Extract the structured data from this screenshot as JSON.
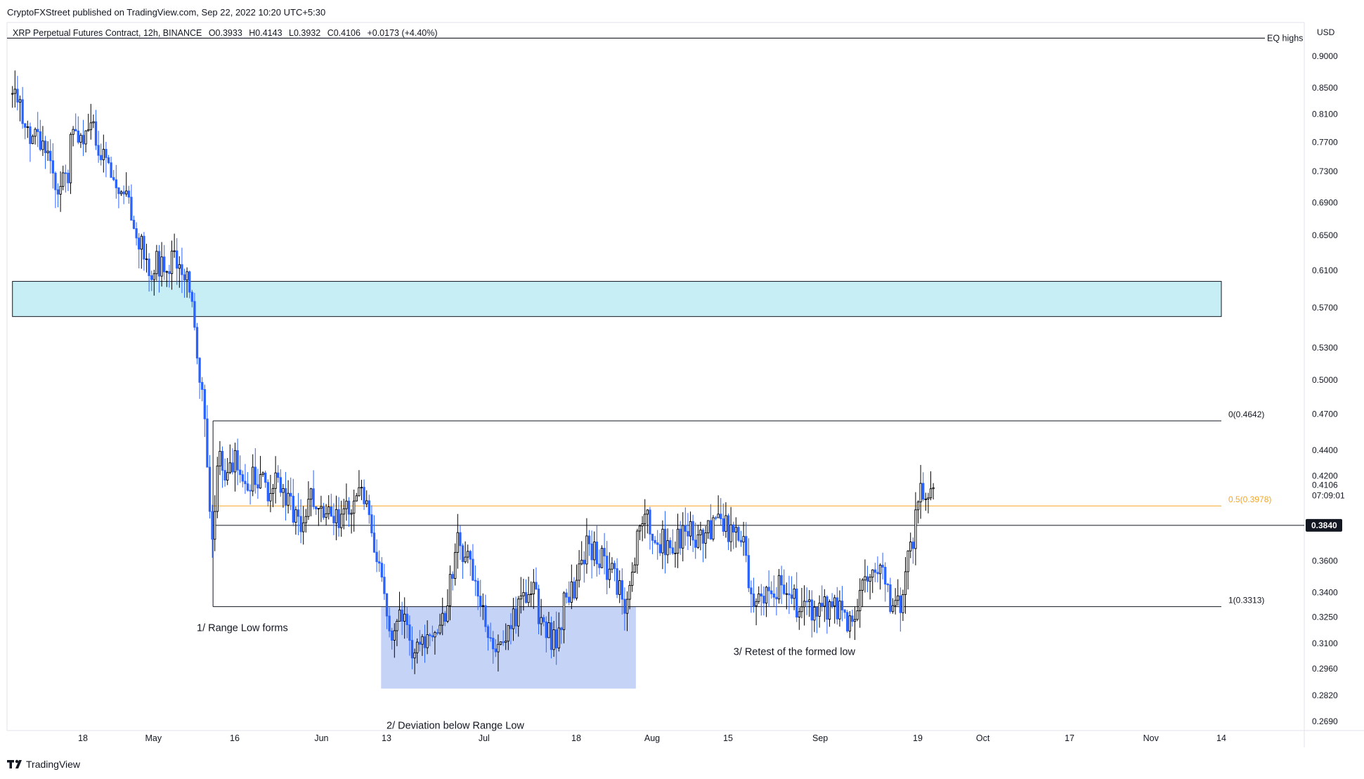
{
  "header": {
    "publisher": "CryptoFXStreet published on TradingView.com, Sep 22, 2022 10:20 UTC+5:30",
    "symbol_line": "XRP Perpetual Futures Contract, 12h, BINANCE",
    "ohlc": {
      "o": "O0.3933",
      "h": "H0.4143",
      "l": "L0.3932",
      "c": "C0.4106",
      "chg": "+0.0173 (+4.40%)"
    }
  },
  "footer": {
    "brand": "TradingView",
    "logo_icon": "tradingview-logo-icon"
  },
  "colors": {
    "up": "#000000",
    "down": "#2962ff",
    "zone_supply": "#c8eef5",
    "zone_deviation": "#c5d3f7",
    "fib_half": "#f5a623",
    "price_tag_bg": "#131722"
  },
  "chart_data": {
    "type": "candlestick",
    "scale": "log",
    "currency": "USD",
    "price_ticks": [
      0.9,
      0.85,
      0.81,
      0.77,
      0.73,
      0.69,
      0.65,
      0.61,
      0.57,
      0.53,
      0.5,
      0.47,
      0.44,
      0.42,
      0.36,
      0.34,
      0.325,
      0.31,
      0.296,
      0.282,
      0.269
    ],
    "price_tick_labels": [
      "0.9000",
      "0.8500",
      "0.8100",
      "0.7700",
      "0.7300",
      "0.6900",
      "0.6500",
      "0.6100",
      "0.5700",
      "0.5300",
      "0.5000",
      "0.4700",
      "0.4400",
      "0.4200",
      "0.3600",
      "0.3400",
      "0.3250",
      "0.3100",
      "0.2960",
      "0.2820",
      "0.2690"
    ],
    "last_price_label": "0.4106",
    "countdown": "07:09:01",
    "current_level_label": "0.3840",
    "time_ticks": [
      {
        "label": "18",
        "date": "2022-04-18"
      },
      {
        "label": "May",
        "date": "2022-05-01"
      },
      {
        "label": "16",
        "date": "2022-05-16"
      },
      {
        "label": "Jun",
        "date": "2022-06-01"
      },
      {
        "label": "13",
        "date": "2022-06-13"
      },
      {
        "label": "Jul",
        "date": "2022-07-01"
      },
      {
        "label": "18",
        "date": "2022-07-18"
      },
      {
        "label": "Aug",
        "date": "2022-08-01"
      },
      {
        "label": "15",
        "date": "2022-08-15"
      },
      {
        "label": "Sep",
        "date": "2022-09-01"
      },
      {
        "label": "19",
        "date": "2022-09-19"
      },
      {
        "label": "Oct",
        "date": "2022-10-01"
      },
      {
        "label": "17",
        "date": "2022-10-17"
      },
      {
        "label": "Nov",
        "date": "2022-11-01"
      },
      {
        "label": "14",
        "date": "2022-11-14"
      }
    ],
    "levels": [
      {
        "label": "EQ highs",
        "price": 0.93
      },
      {
        "label": "0(0.4642)",
        "price": 0.4642
      },
      {
        "label": "0.5(0.3978)",
        "price": 0.3978
      },
      {
        "label": "",
        "price": 0.384
      },
      {
        "label": "1(0.3313)",
        "price": 0.3313
      }
    ],
    "zones": [
      {
        "name": "supply",
        "start": "2022-04-05",
        "end": "2022-11-14",
        "top": 0.598,
        "bottom": 0.561
      },
      {
        "name": "deviation",
        "start": "2022-06-12",
        "end": "2022-07-29",
        "top": 0.3313,
        "bottom": 0.2855
      }
    ],
    "annotations": [
      {
        "text": "1/ Range Low forms",
        "date": "2022-05-09",
        "price": 0.317
      },
      {
        "text": "2/ Deviation below Range Low",
        "date": "2022-06-13",
        "price": 0.2655
      },
      {
        "text": "3/ Retest of the formed low",
        "date": "2022-08-16",
        "price": 0.3035
      }
    ],
    "path": [
      [
        "2022-04-05",
        0.84
      ],
      [
        "2022-04-08",
        0.79
      ],
      [
        "2022-04-11",
        0.76
      ],
      [
        "2022-04-13",
        0.72
      ],
      [
        "2022-04-15",
        0.71
      ],
      [
        "2022-04-16",
        0.79
      ],
      [
        "2022-04-18",
        0.78
      ],
      [
        "2022-04-20",
        0.78
      ],
      [
        "2022-04-22",
        0.75
      ],
      [
        "2022-04-24",
        0.72
      ],
      [
        "2022-04-26",
        0.69
      ],
      [
        "2022-04-28",
        0.65
      ],
      [
        "2022-04-29",
        0.63
      ],
      [
        "2022-04-30",
        0.6
      ],
      [
        "2022-05-01",
        0.62
      ],
      [
        "2022-05-03",
        0.61
      ],
      [
        "2022-05-05",
        0.63
      ],
      [
        "2022-05-06",
        0.62
      ],
      [
        "2022-05-07",
        0.6
      ],
      [
        "2022-05-08",
        0.58
      ],
      [
        "2022-05-09",
        0.52
      ],
      [
        "2022-05-10",
        0.48
      ],
      [
        "2022-05-11",
        0.43
      ],
      [
        "2022-05-12",
        0.36
      ],
      [
        "2022-05-13",
        0.44
      ],
      [
        "2022-05-14",
        0.42
      ],
      [
        "2022-05-16",
        0.43
      ],
      [
        "2022-05-18",
        0.41
      ],
      [
        "2022-05-20",
        0.42
      ],
      [
        "2022-05-22",
        0.41
      ],
      [
        "2022-05-24",
        0.42
      ],
      [
        "2022-05-26",
        0.4
      ],
      [
        "2022-05-28",
        0.385
      ],
      [
        "2022-05-30",
        0.41
      ],
      [
        "2022-06-01",
        0.4
      ],
      [
        "2022-06-03",
        0.395
      ],
      [
        "2022-06-05",
        0.39
      ],
      [
        "2022-06-07",
        0.405
      ],
      [
        "2022-06-09",
        0.4
      ],
      [
        "2022-06-10",
        0.385
      ],
      [
        "2022-06-11",
        0.37
      ],
      [
        "2022-06-12",
        0.35
      ],
      [
        "2022-06-13",
        0.32
      ],
      [
        "2022-06-14",
        0.31
      ],
      [
        "2022-06-16",
        0.33
      ],
      [
        "2022-06-18",
        0.3
      ],
      [
        "2022-06-20",
        0.315
      ],
      [
        "2022-06-22",
        0.32
      ],
      [
        "2022-06-24",
        0.33
      ],
      [
        "2022-06-26",
        0.375
      ],
      [
        "2022-06-28",
        0.36
      ],
      [
        "2022-06-30",
        0.33
      ],
      [
        "2022-07-02",
        0.315
      ],
      [
        "2022-07-04",
        0.31
      ],
      [
        "2022-07-06",
        0.32
      ],
      [
        "2022-07-08",
        0.335
      ],
      [
        "2022-07-10",
        0.34
      ],
      [
        "2022-07-12",
        0.32
      ],
      [
        "2022-07-14",
        0.31
      ],
      [
        "2022-07-16",
        0.335
      ],
      [
        "2022-07-18",
        0.345
      ],
      [
        "2022-07-20",
        0.37
      ],
      [
        "2022-07-22",
        0.365
      ],
      [
        "2022-07-24",
        0.355
      ],
      [
        "2022-07-26",
        0.34
      ],
      [
        "2022-07-27",
        0.33
      ],
      [
        "2022-07-29",
        0.37
      ],
      [
        "2022-07-31",
        0.39
      ],
      [
        "2022-08-02",
        0.375
      ],
      [
        "2022-08-04",
        0.37
      ],
      [
        "2022-08-06",
        0.375
      ],
      [
        "2022-08-08",
        0.38
      ],
      [
        "2022-08-10",
        0.375
      ],
      [
        "2022-08-12",
        0.38
      ],
      [
        "2022-08-14",
        0.385
      ],
      [
        "2022-08-16",
        0.375
      ],
      [
        "2022-08-18",
        0.37
      ],
      [
        "2022-08-19",
        0.335
      ],
      [
        "2022-08-21",
        0.34
      ],
      [
        "2022-08-23",
        0.34
      ],
      [
        "2022-08-25",
        0.345
      ],
      [
        "2022-08-27",
        0.335
      ],
      [
        "2022-08-29",
        0.33
      ],
      [
        "2022-08-31",
        0.325
      ],
      [
        "2022-09-02",
        0.33
      ],
      [
        "2022-09-04",
        0.33
      ],
      [
        "2022-09-06",
        0.32
      ],
      [
        "2022-09-08",
        0.335
      ],
      [
        "2022-09-10",
        0.35
      ],
      [
        "2022-09-12",
        0.355
      ],
      [
        "2022-09-13",
        0.345
      ],
      [
        "2022-09-14",
        0.33
      ],
      [
        "2022-09-16",
        0.33
      ],
      [
        "2022-09-17",
        0.36
      ],
      [
        "2022-09-18",
        0.37
      ],
      [
        "2022-09-19",
        0.4
      ],
      [
        "2022-09-20",
        0.41
      ],
      [
        "2022-09-21",
        0.395
      ],
      [
        "2022-09-22",
        0.4106
      ]
    ]
  }
}
